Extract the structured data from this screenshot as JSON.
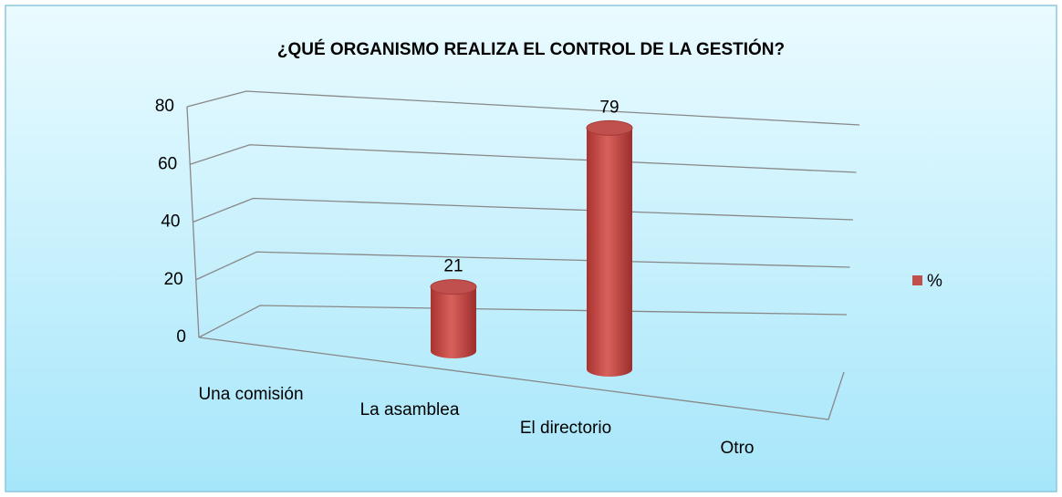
{
  "chart_data": {
    "type": "bar3d",
    "title": "¿QUÉ ORGANISMO REALIZA EL CONTROL DE LA GESTIÓN?",
    "categories": [
      "Una comisión",
      "La asamblea",
      "El directorio",
      "Otro"
    ],
    "series": [
      {
        "name": "%",
        "color": "#c0504d",
        "values": [
          null,
          21,
          79,
          null
        ]
      }
    ],
    "ylim": [
      0,
      80
    ],
    "yticks": [
      0,
      20,
      40,
      60,
      80
    ],
    "grid": true,
    "legend": "right"
  }
}
